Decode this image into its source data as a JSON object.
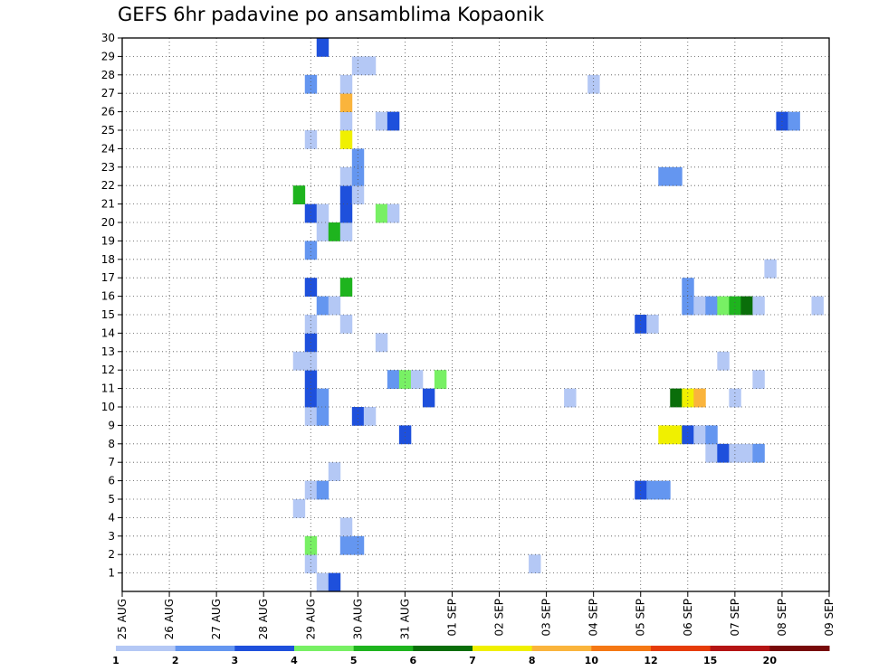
{
  "chart_data": {
    "type": "heatmap",
    "title": "GEFS 6hr padavine po ansamblima Kopaonik",
    "xlabel": "",
    "ylabel": "",
    "x_ticks": [
      "25 AUG",
      "26 AUG",
      "27 AUG",
      "28 AUG",
      "29 AUG",
      "30 AUG",
      "31 AUG",
      "01 SEP",
      "02 SEP",
      "03 SEP",
      "04 SEP",
      "05 SEP",
      "06 SEP",
      "07 SEP",
      "08 SEP",
      "09 SEP"
    ],
    "x_range_days": [
      0,
      15
    ],
    "y_ticks": [
      1,
      2,
      3,
      4,
      5,
      6,
      7,
      8,
      9,
      10,
      11,
      12,
      13,
      14,
      15,
      16,
      17,
      18,
      19,
      20,
      21,
      22,
      23,
      24,
      25,
      26,
      27,
      28,
      29,
      30
    ],
    "y_range": [
      0,
      30
    ],
    "grid": true,
    "colorbar": {
      "labels": [
        "1",
        "2",
        "3",
        "4",
        "5",
        "6",
        "7",
        "8",
        "10",
        "12",
        "15",
        "20"
      ],
      "colors": [
        "#b4c8f5",
        "#6496f0",
        "#1e50dc",
        "#78f064",
        "#1eb41e",
        "#0a6e0a",
        "#f0f000",
        "#fab43c",
        "#f57814",
        "#e63c0a",
        "#b41414",
        "#780a0a"
      ]
    },
    "cells": [
      [
        4.25,
        0,
        1
      ],
      [
        4.5,
        0,
        3
      ],
      [
        4.0,
        1,
        1
      ],
      [
        8.75,
        1,
        1
      ],
      [
        4.0,
        2,
        4
      ],
      [
        4.75,
        2,
        2
      ],
      [
        5.0,
        2,
        2
      ],
      [
        4.75,
        3,
        1
      ],
      [
        3.75,
        4,
        1
      ],
      [
        4.0,
        5,
        1
      ],
      [
        4.25,
        5,
        2
      ],
      [
        11.0,
        5,
        3
      ],
      [
        11.25,
        5,
        2
      ],
      [
        11.5,
        5,
        2
      ],
      [
        4.5,
        6,
        1
      ],
      [
        12.5,
        7,
        1
      ],
      [
        12.75,
        7,
        3
      ],
      [
        13.0,
        7,
        1
      ],
      [
        13.25,
        7,
        1
      ],
      [
        13.5,
        7,
        2
      ],
      [
        6.0,
        8,
        3
      ],
      [
        11.5,
        8,
        7
      ],
      [
        11.75,
        8,
        7
      ],
      [
        12.0,
        8,
        3
      ],
      [
        12.25,
        8,
        1
      ],
      [
        12.5,
        8,
        2
      ],
      [
        4.0,
        9,
        1
      ],
      [
        4.25,
        9,
        2
      ],
      [
        5.0,
        9,
        3
      ],
      [
        5.25,
        9,
        1
      ],
      [
        4.0,
        10,
        3
      ],
      [
        4.25,
        10,
        2
      ],
      [
        6.5,
        10,
        3
      ],
      [
        9.5,
        10,
        1
      ],
      [
        11.75,
        10,
        6
      ],
      [
        12.0,
        10,
        7
      ],
      [
        12.25,
        10,
        8
      ],
      [
        13.0,
        10,
        1
      ],
      [
        4.0,
        11,
        3
      ],
      [
        5.75,
        11,
        2
      ],
      [
        6.0,
        11,
        4
      ],
      [
        6.25,
        11,
        1
      ],
      [
        6.75,
        11,
        4
      ],
      [
        13.5,
        11,
        1
      ],
      [
        3.75,
        12,
        1
      ],
      [
        4.0,
        12,
        1
      ],
      [
        12.75,
        12,
        1
      ],
      [
        4.0,
        13,
        3
      ],
      [
        5.5,
        13,
        1
      ],
      [
        4.0,
        14,
        1
      ],
      [
        4.75,
        14,
        1
      ],
      [
        11.0,
        14,
        3
      ],
      [
        11.25,
        14,
        1
      ],
      [
        4.25,
        15,
        2
      ],
      [
        4.5,
        15,
        1
      ],
      [
        12.0,
        15,
        2
      ],
      [
        12.25,
        15,
        1
      ],
      [
        12.5,
        15,
        2
      ],
      [
        12.75,
        15,
        4
      ],
      [
        13.0,
        15,
        5
      ],
      [
        13.25,
        15,
        6
      ],
      [
        13.5,
        15,
        1
      ],
      [
        14.75,
        15,
        1
      ],
      [
        4.0,
        16,
        3
      ],
      [
        4.75,
        16,
        5
      ],
      [
        12.0,
        16,
        2
      ],
      [
        13.75,
        17,
        1
      ],
      [
        4.0,
        18,
        2
      ],
      [
        4.25,
        19,
        1
      ],
      [
        4.5,
        19,
        5
      ],
      [
        4.75,
        19,
        1
      ],
      [
        4.0,
        20,
        3
      ],
      [
        4.25,
        20,
        1
      ],
      [
        4.75,
        20,
        3
      ],
      [
        5.5,
        20,
        4
      ],
      [
        5.75,
        20,
        1
      ],
      [
        3.75,
        21,
        5
      ],
      [
        4.75,
        21,
        3
      ],
      [
        5.0,
        21,
        1
      ],
      [
        4.75,
        22,
        1
      ],
      [
        5.0,
        22,
        2
      ],
      [
        11.5,
        22,
        2
      ],
      [
        11.75,
        22,
        2
      ],
      [
        5.0,
        23,
        2
      ],
      [
        4.0,
        24,
        1
      ],
      [
        4.75,
        24,
        7
      ],
      [
        4.75,
        25,
        1
      ],
      [
        5.5,
        25,
        1
      ],
      [
        5.75,
        25,
        3
      ],
      [
        14.0,
        25,
        3
      ],
      [
        14.25,
        25,
        2
      ],
      [
        4.75,
        26,
        8
      ],
      [
        4.0,
        27,
        2
      ],
      [
        4.75,
        27,
        1
      ],
      [
        10.0,
        27,
        1
      ],
      [
        5.0,
        28,
        1
      ],
      [
        5.25,
        28,
        1
      ],
      [
        4.25,
        29,
        3
      ]
    ]
  }
}
